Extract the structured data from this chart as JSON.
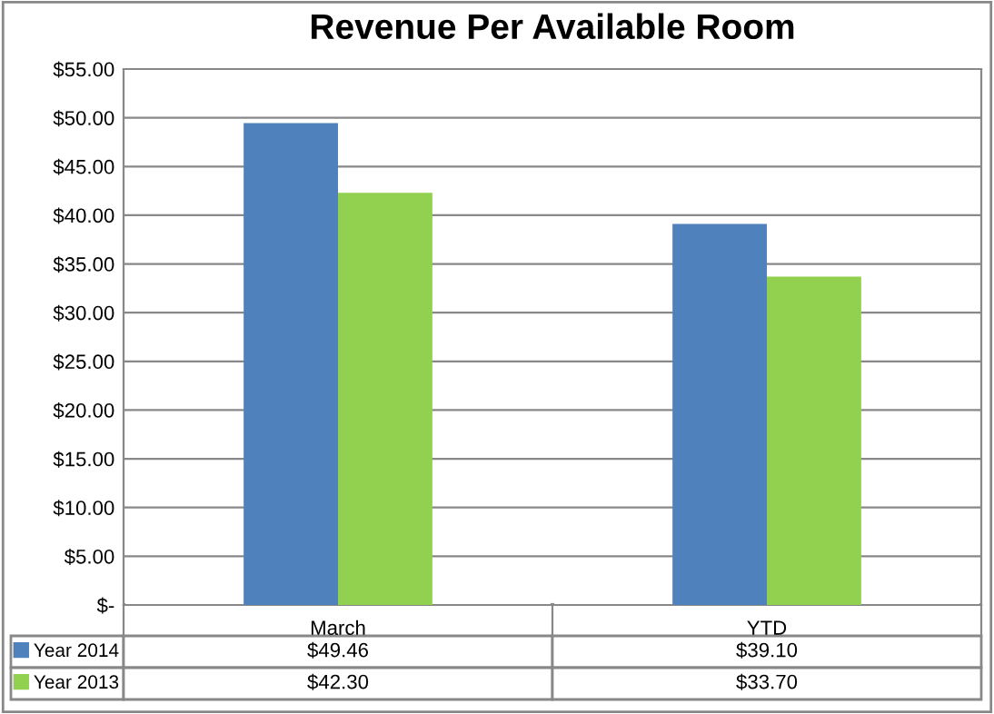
{
  "chart_data": {
    "type": "bar",
    "title": "Revenue Per Available Room",
    "categories": [
      "March",
      "YTD"
    ],
    "series": [
      {
        "name": "Year 2014",
        "color": "#4f81bd",
        "values": [
          49.46,
          39.1
        ],
        "value_labels": [
          "$49.46",
          "$39.10"
        ]
      },
      {
        "name": "Year 2013",
        "color": "#92d050",
        "values": [
          42.3,
          33.7
        ],
        "value_labels": [
          "$42.30",
          "$33.70"
        ]
      }
    ],
    "ylim": [
      0,
      55
    ],
    "yticks": [
      {
        "value": 0,
        "label": "$-"
      },
      {
        "value": 5,
        "label": "$5.00"
      },
      {
        "value": 10,
        "label": "$10.00"
      },
      {
        "value": 15,
        "label": "$15.00"
      },
      {
        "value": 20,
        "label": "$20.00"
      },
      {
        "value": 25,
        "label": "$25.00"
      },
      {
        "value": 30,
        "label": "$30.00"
      },
      {
        "value": 35,
        "label": "$35.00"
      },
      {
        "value": 40,
        "label": "$40.00"
      },
      {
        "value": 45,
        "label": "$45.00"
      },
      {
        "value": 50,
        "label": "$50.00"
      },
      {
        "value": 55,
        "label": "$55.00"
      }
    ],
    "grid": "y",
    "legend": "bottom"
  }
}
